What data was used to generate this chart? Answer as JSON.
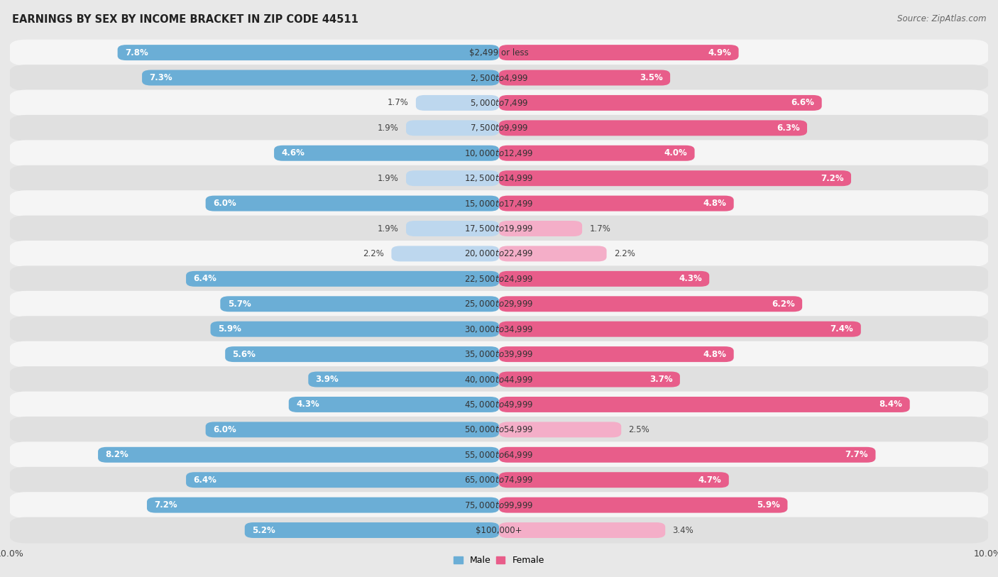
{
  "title": "EARNINGS BY SEX BY INCOME BRACKET IN ZIP CODE 44511",
  "source": "Source: ZipAtlas.com",
  "categories": [
    "$2,499 or less",
    "$2,500 to $4,999",
    "$5,000 to $7,499",
    "$7,500 to $9,999",
    "$10,000 to $12,499",
    "$12,500 to $14,999",
    "$15,000 to $17,499",
    "$17,500 to $19,999",
    "$20,000 to $22,499",
    "$22,500 to $24,999",
    "$25,000 to $29,999",
    "$30,000 to $34,999",
    "$35,000 to $39,999",
    "$40,000 to $44,999",
    "$45,000 to $49,999",
    "$50,000 to $54,999",
    "$55,000 to $64,999",
    "$65,000 to $74,999",
    "$75,000 to $99,999",
    "$100,000+"
  ],
  "male_values": [
    7.8,
    7.3,
    1.7,
    1.9,
    4.6,
    1.9,
    6.0,
    1.9,
    2.2,
    6.4,
    5.7,
    5.9,
    5.6,
    3.9,
    4.3,
    6.0,
    8.2,
    6.4,
    7.2,
    5.2
  ],
  "female_values": [
    4.9,
    3.5,
    6.6,
    6.3,
    4.0,
    7.2,
    4.8,
    1.7,
    2.2,
    4.3,
    6.2,
    7.4,
    4.8,
    3.7,
    8.4,
    2.5,
    7.7,
    4.7,
    5.9,
    3.4
  ],
  "male_color_full": "#6baed6",
  "male_color_light": "#bdd7ee",
  "female_color_full": "#e85d8a",
  "female_color_light": "#f4aec8",
  "male_label": "Male",
  "female_label": "Female",
  "xlim": 10.0,
  "bar_height": 0.62,
  "bg_color": "#e8e8e8",
  "row_colors": [
    "#f5f5f5",
    "#e0e0e0"
  ],
  "title_fontsize": 10.5,
  "source_fontsize": 8.5,
  "label_fontsize": 8.5,
  "category_fontsize": 8.5,
  "axis_tick_fontsize": 9,
  "inside_label_threshold": 3.5
}
